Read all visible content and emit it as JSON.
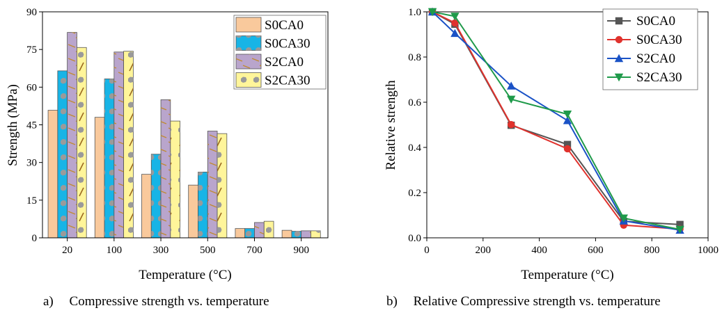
{
  "captions": {
    "a_prefix": "a)",
    "a_text": "Compressive strength vs. temperature",
    "b_prefix": "b)",
    "b_text": "Relative Compressive strength vs. temperature"
  },
  "colors": {
    "S0CA0": "#f9c99c",
    "S0CA30": "#17b4e6",
    "S2CA0": "#b9a5cc",
    "S2CA30": "#fff59a",
    "line_S0CA0": "#555555",
    "line_S0CA30": "#e0322d",
    "line_S2CA0": "#1a52c6",
    "line_S2CA30": "#1f9a4a",
    "pattern_dot": "#9a9a9a",
    "pattern_dash": "#c08a30"
  },
  "chart_data": [
    {
      "type": "bar",
      "xlabel": "Temperature (°C)",
      "ylabel": "Strength (MPa)",
      "categories": [
        "20",
        "100",
        "300",
        "500",
        "700",
        "900"
      ],
      "ylim": [
        0,
        90
      ],
      "yticks": [
        0,
        15,
        30,
        45,
        60,
        75,
        90
      ],
      "legend_position": "top-right",
      "series": [
        {
          "name": "S0CA0",
          "values": [
            50.8,
            48.0,
            25.3,
            21.0,
            3.7,
            3.0
          ]
        },
        {
          "name": "S0CA30",
          "values": [
            66.5,
            63.3,
            33.3,
            26.2,
            3.7,
            2.6
          ]
        },
        {
          "name": "S2CA0",
          "values": [
            81.8,
            74.0,
            55.0,
            42.5,
            6.1,
            2.8
          ]
        },
        {
          "name": "S2CA30",
          "values": [
            75.8,
            74.3,
            46.5,
            41.5,
            6.6,
            2.8
          ]
        }
      ]
    },
    {
      "type": "line",
      "xlabel": "Temperature (°C)",
      "ylabel": "Relative strength",
      "xlim": [
        0,
        1000
      ],
      "ylim": [
        0,
        1.0
      ],
      "xticks": [
        0,
        200,
        400,
        600,
        800,
        1000
      ],
      "yticks": [
        0.0,
        0.2,
        0.4,
        0.6,
        0.8,
        1.0
      ],
      "legend_position": "top-right",
      "x": [
        20,
        100,
        300,
        500,
        700,
        900
      ],
      "series": [
        {
          "name": "S0CA0",
          "marker": "square",
          "values": [
            1.0,
            0.945,
            0.498,
            0.413,
            0.073,
            0.059
          ]
        },
        {
          "name": "S0CA30",
          "marker": "circle",
          "values": [
            1.0,
            0.951,
            0.501,
            0.394,
            0.056,
            0.039
          ]
        },
        {
          "name": "S2CA0",
          "marker": "triangle-up",
          "values": [
            1.0,
            0.905,
            0.672,
            0.519,
            0.075,
            0.034
          ]
        },
        {
          "name": "S2CA30",
          "marker": "triangle-down",
          "values": [
            1.0,
            0.98,
            0.613,
            0.547,
            0.087,
            0.037
          ]
        }
      ]
    }
  ]
}
